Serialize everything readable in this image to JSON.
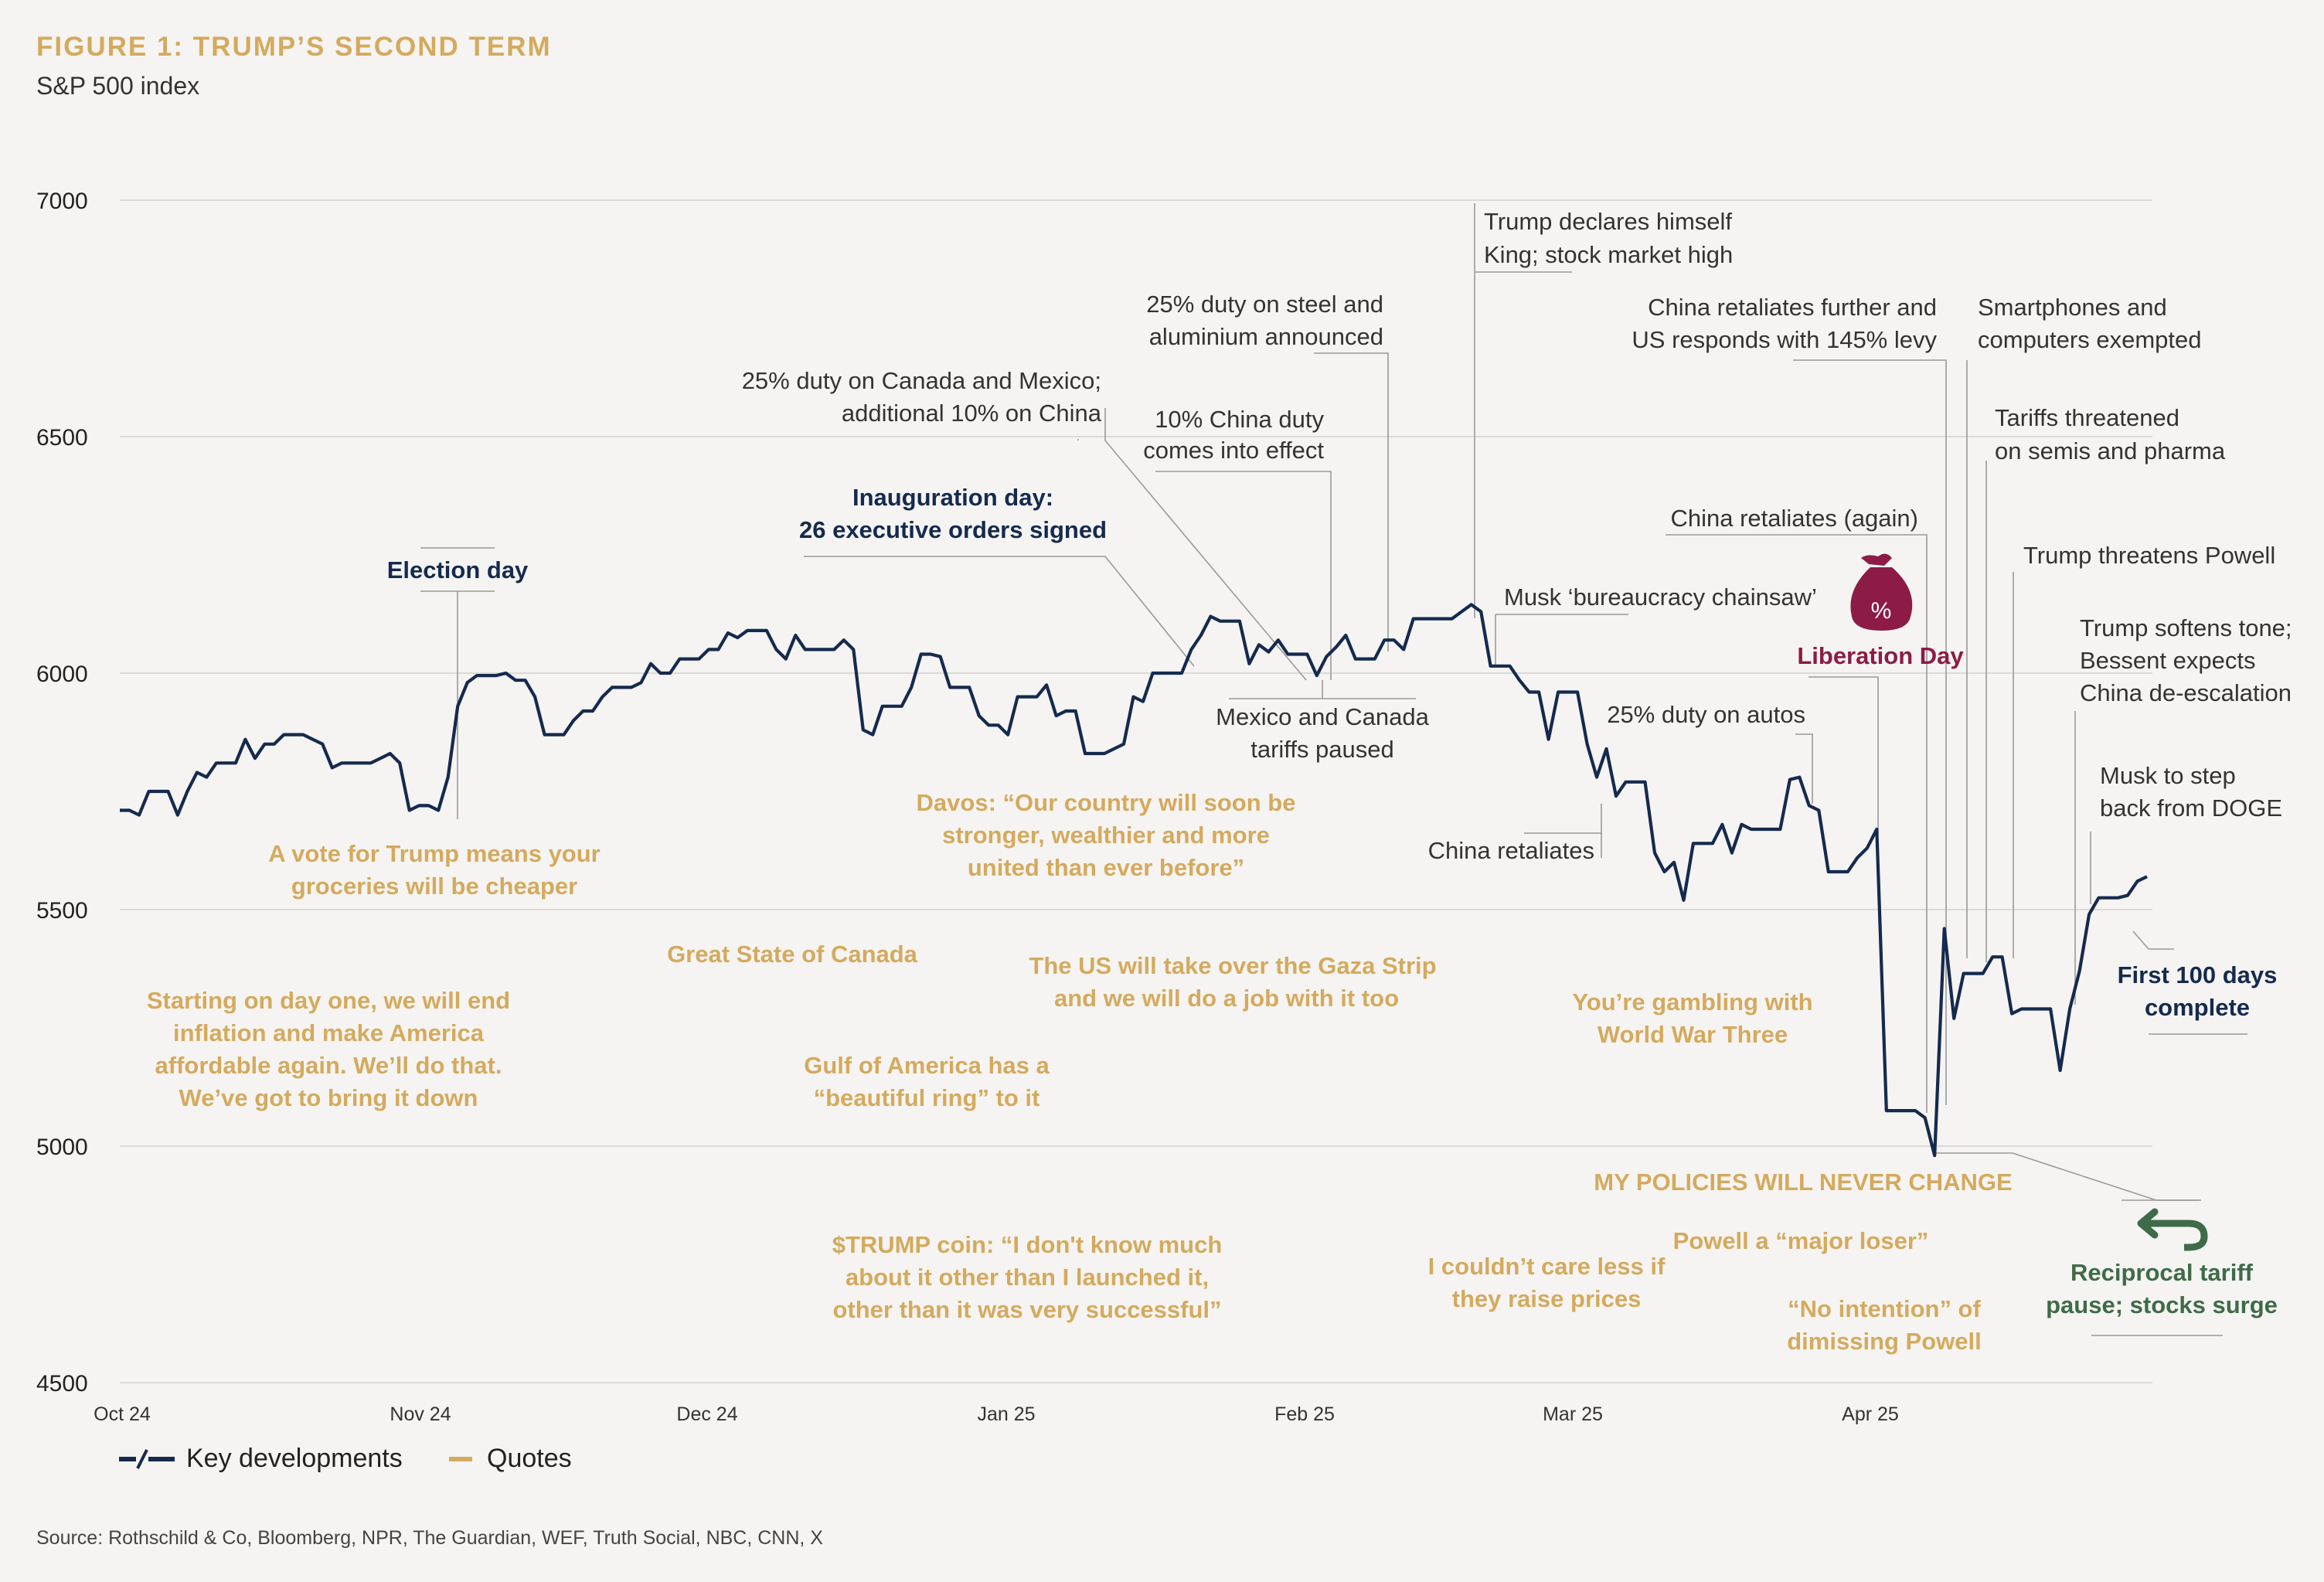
{
  "chart_data": {
    "type": "line",
    "title": "FIGURE 1: TRUMP’S SECOND TERM",
    "subtitle": "S&P 500 index",
    "ylim": [
      4500,
      7000
    ],
    "yticks": [
      "7000",
      "6500",
      "6000",
      "5500",
      "5000",
      "4500"
    ],
    "xtick_labels": [
      "Oct 24",
      "Nov 24",
      "Dec 24",
      "Jan 25",
      "Feb 25",
      "Mar 25",
      "Apr 25"
    ],
    "grid": true,
    "legend": [
      {
        "symbol": "−/−",
        "label": "Key developments"
      },
      {
        "symbol": "gold-line",
        "label": "Quotes"
      }
    ],
    "source": "Source: Rothschild & Co, Bloomberg, NPR, The Guardian, WEF, Truth Social, NBC, CNN, X",
    "colors": {
      "line": "#152a4e",
      "quote": "#d4aa5e",
      "liberation": "#8c1c45",
      "reciprocal": "#3f6b48",
      "grid": "#dcdad6"
    },
    "series": [
      {
        "values": [
          5710,
          5710,
          5700,
          5750,
          5750,
          5750,
          5700,
          5750,
          5790,
          5780,
          5810,
          5810,
          5810,
          5860,
          5820,
          5850,
          5850,
          5870,
          5870,
          5870,
          5860,
          5850,
          5800,
          5810,
          5810,
          5810,
          5810,
          5820,
          5830,
          5810,
          5710,
          5720,
          5720,
          5710,
          5780,
          5930,
          5980,
          5995,
          5995,
          5995,
          6000,
          5985,
          5985,
          5950,
          5870,
          5870,
          5870,
          5900,
          5920,
          5920,
          5950,
          5970,
          5970,
          5970,
          5980,
          6020,
          6000,
          6000,
          6030,
          6030,
          6030,
          6050,
          6050,
          6085,
          6075,
          6090,
          6090,
          6090,
          6050,
          6030,
          6080,
          6050,
          6050,
          6050,
          6050,
          6070,
          6050,
          5880,
          5870,
          5930,
          5930,
          5930,
          5970,
          6040,
          6040,
          6035,
          5970,
          5970,
          5970,
          5910,
          5890,
          5890,
          5870,
          5950,
          5950,
          5950,
          5975,
          5910,
          5920,
          5920,
          5830,
          5830,
          5830,
          5840,
          5850,
          5950,
          5940,
          6000,
          6000,
          6000,
          6000,
          6050,
          6080,
          6120,
          6110,
          6110,
          6110,
          6020,
          6060,
          6045,
          6070,
          6040,
          6040,
          6040,
          5995,
          6035,
          6055,
          6080,
          6030,
          6030,
          6030,
          6070,
          6070,
          6050,
          6115,
          6115,
          6115,
          6115,
          6115,
          6130,
          6145,
          6130,
          6015,
          6015,
          6015,
          5985,
          5960,
          5960,
          5860,
          5960,
          5960,
          5960,
          5850,
          5780,
          5840,
          5740,
          5770,
          5770,
          5770,
          5620,
          5580,
          5600,
          5520,
          5640,
          5640,
          5640,
          5680,
          5620,
          5680,
          5670,
          5670,
          5670,
          5670,
          5775,
          5780,
          5720,
          5710,
          5580,
          5580,
          5580,
          5610,
          5630,
          5670,
          5075,
          5075,
          5075,
          5075,
          5060,
          4980,
          5460,
          5270,
          5365,
          5365,
          5365,
          5400,
          5400,
          5280,
          5290,
          5290,
          5290,
          5290,
          5160,
          5290,
          5370,
          5490,
          5525,
          5525,
          5525,
          5530,
          5560,
          5570
        ]
      }
    ],
    "annotations": [
      "Election day",
      "Inauguration day:",
      "26 executive orders signed",
      "25% duty on Canada and Mexico;",
      "additional 10% on China",
      "10% China duty",
      "comes into effect",
      "25% duty on steel and",
      "aluminium announced",
      "Trump declares himself",
      "King; stock market high",
      "Musk ‘bureaucracy chainsaw’",
      "Mexico and Canada",
      "tariffs paused",
      "China retaliates further and",
      "US responds with 145% levy",
      "Smartphones and",
      "computers exempted",
      "Tariffs threatened",
      "on semis and pharma",
      "China retaliates (again)",
      "Trump threatens Powell",
      "Liberation Day",
      "%",
      "Trump softens tone;",
      "Bessent expects",
      "China de-escalation",
      "25% duty on autos",
      "Musk to step",
      "back from DOGE",
      "China retaliates",
      "First 100 days",
      "complete",
      "Reciprocal tariff",
      "pause; stocks surge"
    ],
    "quotes": [
      "A vote for Trump means your",
      "groceries will be cheaper",
      "Starting on day one, we will end",
      "inflation and make America",
      "affordable again. We’ll do that.",
      "We’ve got to bring it down",
      "Great State of Canada",
      "Davos: “Our country will soon be",
      "stronger, wealthier and more",
      "united than ever before”",
      "Gulf of America has a",
      "“beautiful ring” to it",
      "$TRUMP coin: “I don't know much",
      "about it other than I launched it,",
      "other than it was very successful”",
      "The US will take over the Gaza Strip",
      "and we will do a job with it too",
      "You’re gambling with",
      "World War Three",
      "I couldn’t care less if",
      "they raise prices",
      "MY POLICIES WILL NEVER CHANGE",
      "Powell a “major loser”",
      "“No intention” of",
      "dimissing Powell"
    ]
  }
}
